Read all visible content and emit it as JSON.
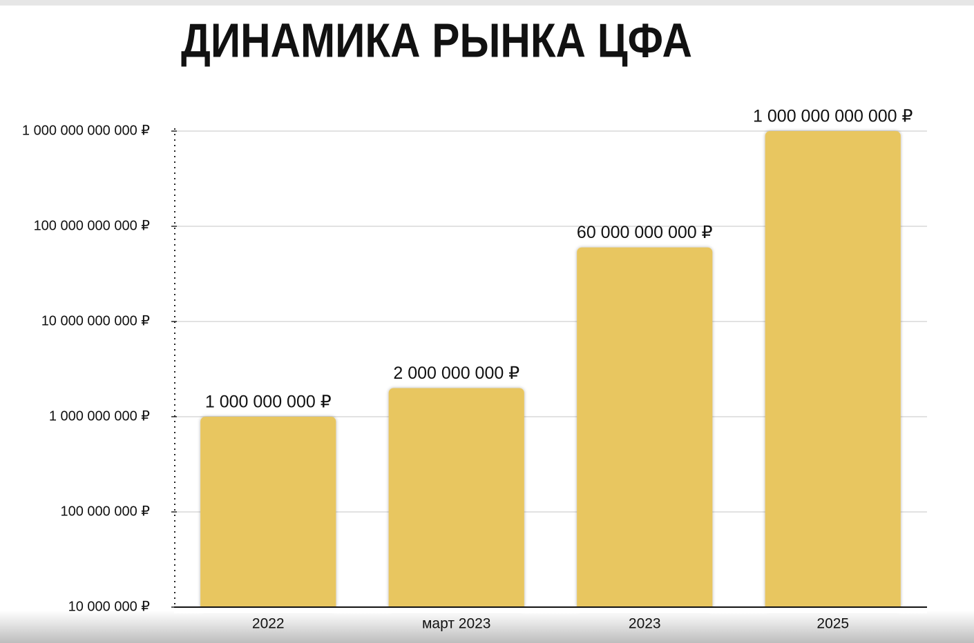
{
  "chart_data": {
    "type": "bar",
    "title": "ДИНАМИКА РЫНКА ЦФА",
    "categories": [
      "2022",
      "март 2023",
      "2023",
      "2025"
    ],
    "values": [
      1000000000,
      2000000000,
      60000000000,
      1000000000000
    ],
    "value_labels": [
      "1 000 000 000 ₽",
      "2 000 000 000 ₽",
      "60 000 000 000 ₽",
      "1 000 000 000 000 ₽"
    ],
    "color": "#e8c661",
    "log": true,
    "ylim": [
      10000000,
      1000000000000
    ],
    "yticks": [
      {
        "value": 10000000,
        "label": "10 000 000 ₽"
      },
      {
        "value": 100000000,
        "label": "100 000 000 ₽"
      },
      {
        "value": 1000000000,
        "label": "1 000 000 000 ₽"
      },
      {
        "value": 10000000000,
        "label": "10 000 000 000 ₽"
      },
      {
        "value": 100000000000,
        "label": "100 000 000 000 ₽"
      },
      {
        "value": 1000000000000,
        "label": "1 000 000 000 000 ₽"
      }
    ],
    "grid": true
  }
}
